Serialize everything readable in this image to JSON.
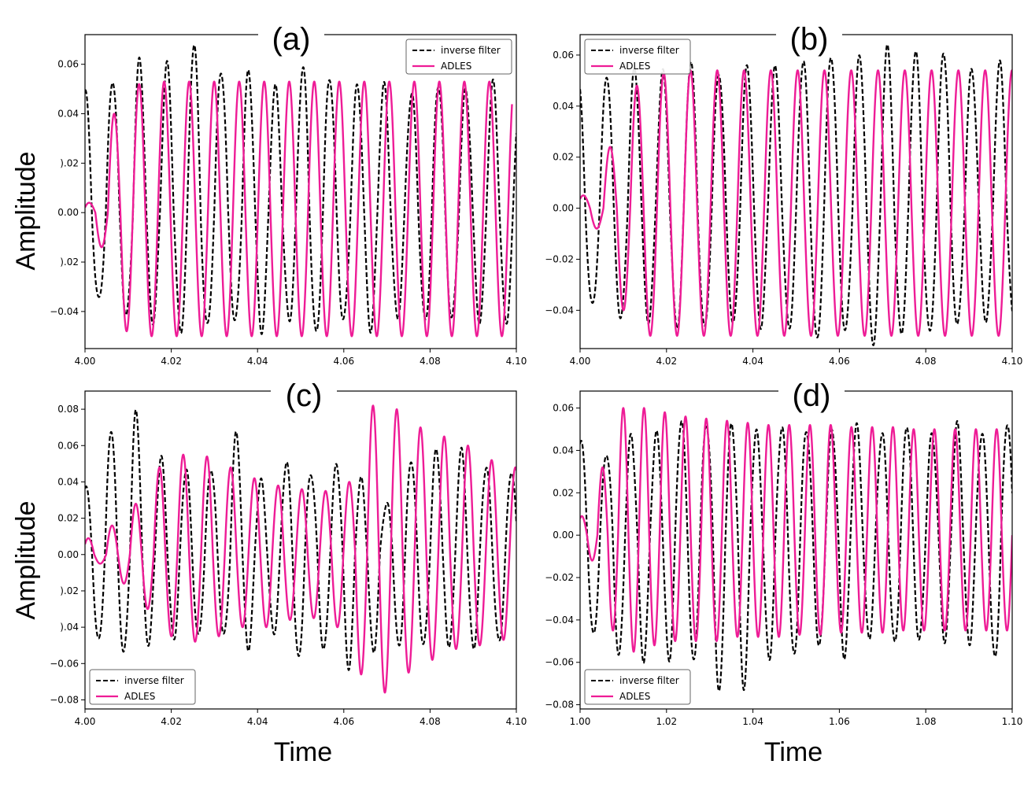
{
  "figure": {
    "ylabel": "Amplitude",
    "xlabel": "Time",
    "colors": {
      "inverse_filter": "#000000",
      "adles": "#ee1c96"
    }
  },
  "chart_data": [
    {
      "type": "line",
      "panel": "(a)",
      "xlim": [
        4.0,
        4.1
      ],
      "ylim": [
        -0.055,
        0.072
      ],
      "xticks": [
        "4.00",
        "4.02",
        "4.04",
        "4.06",
        "4.08",
        "4.10"
      ],
      "yticks": [
        -0.04,
        -0.02,
        0.0,
        0.02,
        0.04,
        0.06
      ],
      "yticklabels": [
        "−0.04",
        ").02",
        "0.00",
        ").02",
        "0.04",
        "0.06"
      ],
      "legend_position": "top-right",
      "series": [
        {
          "name": "inverse filter",
          "style": "dashed",
          "start": 4.0,
          "end": 4.1,
          "period": 0.0063,
          "phase": 0.0015,
          "amp_pos": [
            0.05,
            0.055,
            0.06,
            0.062,
            0.066,
            0.06,
            0.055,
            0.052,
            0.058,
            0.055,
            0.052,
            0.05,
            0.05,
            0.05,
            0.052,
            0.05,
            0.05
          ],
          "amp_neg": [
            -0.038,
            -0.04,
            -0.045,
            -0.047,
            -0.046,
            -0.045,
            -0.046,
            -0.045,
            -0.047,
            -0.046,
            -0.045,
            -0.044,
            -0.043,
            -0.043,
            -0.044,
            -0.043,
            -0.042
          ],
          "noise": 0.004
        },
        {
          "name": "ADLES",
          "style": "solid",
          "start": 4.0,
          "end": 4.099,
          "period": 0.0058,
          "phase": 0.0005,
          "amp_pos": [
            0.004,
            0.04,
            0.052,
            0.053,
            0.053,
            0.053,
            0.053,
            0.053,
            0.053,
            0.053,
            0.053,
            0.053,
            0.053,
            0.053,
            0.053,
            0.053,
            0.053,
            0.053
          ],
          "amp_neg": [
            -0.014,
            -0.048,
            -0.05,
            -0.05,
            -0.05,
            -0.05,
            -0.05,
            -0.05,
            -0.05,
            -0.05,
            -0.05,
            -0.05,
            -0.05,
            -0.05,
            -0.05,
            -0.05,
            -0.05,
            -0.05
          ],
          "noise": 0
        }
      ]
    },
    {
      "type": "line",
      "panel": "(b)",
      "xlim": [
        4.0,
        4.1
      ],
      "ylim": [
        -0.055,
        0.068
      ],
      "xticks": [
        "4.00",
        "4.02",
        "4.04",
        "4.06",
        "4.08",
        "4.10"
      ],
      "yticks": [
        -0.04,
        -0.02,
        0.0,
        0.02,
        0.04,
        0.06
      ],
      "yticklabels": [
        "−0.04",
        "−0.02",
        "0.00",
        "0.02",
        "0.04",
        "0.06"
      ],
      "legend_position": "top-left",
      "series": [
        {
          "name": "inverse filter",
          "style": "dashed",
          "start": 4.0,
          "end": 4.1,
          "period": 0.0065,
          "phase": 0.002,
          "amp_pos": [
            0.05,
            0.053,
            0.053,
            0.055,
            0.056,
            0.055,
            0.054,
            0.056,
            0.057,
            0.06,
            0.06,
            0.062,
            0.063,
            0.06,
            0.056,
            0.055
          ],
          "amp_neg": [
            -0.04,
            -0.042,
            -0.045,
            -0.046,
            -0.047,
            -0.046,
            -0.045,
            -0.048,
            -0.05,
            -0.05,
            -0.051,
            -0.05,
            -0.048,
            -0.046,
            -0.044,
            -0.042
          ],
          "noise": 0.003
        },
        {
          "name": "ADLES",
          "style": "solid",
          "start": 4.0,
          "end": 4.1,
          "period": 0.0062,
          "phase": 0.0008,
          "amp_pos": [
            0.005,
            0.024,
            0.048,
            0.053,
            0.054,
            0.054,
            0.054,
            0.054,
            0.054,
            0.054,
            0.054,
            0.054,
            0.054,
            0.054,
            0.054,
            0.054,
            0.054
          ],
          "amp_neg": [
            -0.008,
            -0.04,
            -0.05,
            -0.05,
            -0.05,
            -0.05,
            -0.05,
            -0.05,
            -0.05,
            -0.05,
            -0.05,
            -0.05,
            -0.05,
            -0.05,
            -0.05,
            -0.05,
            -0.05
          ],
          "noise": 0
        }
      ]
    },
    {
      "type": "line",
      "panel": "(c)",
      "xlim": [
        4.0,
        4.1
      ],
      "ylim": [
        -0.085,
        0.09
      ],
      "xticks": [
        "4.00",
        "4.02",
        "4.04",
        "4.06",
        "4.08",
        "4.10"
      ],
      "yticks": [
        -0.08,
        -0.06,
        -0.04,
        -0.02,
        0.0,
        0.02,
        0.04,
        0.06,
        0.08
      ],
      "yticklabels": [
        "−0.08",
        "−0.06",
        ").04",
        ").02",
        "0.00",
        "0.02",
        "0.04",
        "0.06",
        "0.08"
      ],
      "legend_position": "bottom-left",
      "series": [
        {
          "name": "inverse filter",
          "style": "dashed",
          "start": 4.0,
          "end": 4.1,
          "period": 0.0058,
          "phase": 0.0012,
          "amp_pos": [
            0.038,
            0.07,
            0.077,
            0.055,
            0.045,
            0.05,
            0.065,
            0.042,
            0.05,
            0.045,
            0.05,
            0.04,
            0.03,
            0.05,
            0.06,
            0.055,
            0.05,
            0.045
          ],
          "amp_neg": [
            -0.05,
            -0.052,
            -0.05,
            -0.045,
            -0.045,
            -0.045,
            -0.05,
            -0.045,
            -0.055,
            -0.055,
            -0.06,
            -0.055,
            -0.05,
            -0.05,
            -0.05,
            -0.05,
            -0.05,
            -0.05
          ],
          "noise": 0.004
        },
        {
          "name": "ADLES",
          "style": "solid",
          "start": 4.0,
          "end": 4.1,
          "period": 0.0055,
          "phase": 0.0006,
          "amp_pos": [
            0.009,
            0.016,
            0.028,
            0.048,
            0.055,
            0.054,
            0.048,
            0.042,
            0.038,
            0.036,
            0.035,
            0.04,
            0.082,
            0.08,
            0.07,
            0.065,
            0.06,
            0.052,
            0.048
          ],
          "amp_neg": [
            -0.005,
            -0.016,
            -0.03,
            -0.045,
            -0.048,
            -0.045,
            -0.04,
            -0.04,
            -0.036,
            -0.035,
            -0.04,
            -0.066,
            -0.076,
            -0.065,
            -0.058,
            -0.052,
            -0.05,
            -0.047,
            -0.045
          ],
          "noise": 0
        }
      ]
    },
    {
      "type": "line",
      "panel": "(d)",
      "xlim": [
        1.0,
        1.1
      ],
      "ylim": [
        -0.082,
        0.068
      ],
      "xticks": [
        "1.00",
        "1.02",
        "1.04",
        "1.06",
        "1.08",
        "1.10"
      ],
      "yticks": [
        -0.08,
        -0.06,
        -0.04,
        -0.02,
        0.0,
        0.02,
        0.04,
        0.06
      ],
      "yticklabels": [
        "−0.08",
        "−0.06",
        "−0.04",
        "−0.02",
        "0.00",
        "0.02",
        "0.04",
        "0.06"
      ],
      "legend_position": "bottom-left",
      "series": [
        {
          "name": "inverse filter",
          "style": "dashed",
          "start": 1.0,
          "end": 1.1,
          "period": 0.0058,
          "phase": 0.0012,
          "amp_pos": [
            0.045,
            0.04,
            0.045,
            0.05,
            0.052,
            0.055,
            0.05,
            0.05,
            0.05,
            0.05,
            0.05,
            0.05,
            0.05,
            0.05,
            0.05,
            0.05,
            0.05,
            0.052
          ],
          "amp_neg": [
            -0.05,
            -0.055,
            -0.06,
            -0.058,
            -0.06,
            -0.075,
            -0.07,
            -0.06,
            -0.055,
            -0.055,
            -0.055,
            -0.05,
            -0.05,
            -0.05,
            -0.05,
            -0.05,
            -0.06,
            -0.05
          ],
          "noise": 0.004
        },
        {
          "name": "ADLES",
          "style": "solid",
          "start": 1.0,
          "end": 1.1,
          "period": 0.0048,
          "phase": 0.0008,
          "amp_pos": [
            0.009,
            0.032,
            0.06,
            0.06,
            0.058,
            0.056,
            0.055,
            0.054,
            0.053,
            0.052,
            0.052,
            0.052,
            0.052,
            0.051,
            0.051,
            0.051,
            0.05,
            0.05,
            0.05,
            0.05,
            0.05
          ],
          "amp_neg": [
            -0.012,
            -0.045,
            -0.055,
            -0.052,
            -0.05,
            -0.05,
            -0.05,
            -0.048,
            -0.048,
            -0.048,
            -0.047,
            -0.047,
            -0.046,
            -0.046,
            -0.046,
            -0.045,
            -0.045,
            -0.045,
            -0.045,
            -0.045,
            -0.045
          ],
          "noise": 0
        }
      ]
    }
  ]
}
